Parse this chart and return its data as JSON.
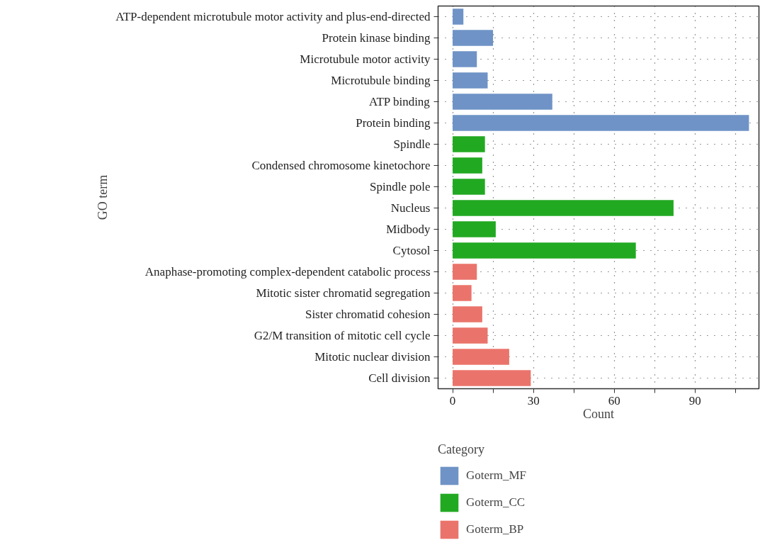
{
  "chart_data": {
    "type": "bar",
    "orientation": "horizontal",
    "xlabel": "Count",
    "ylabel": "GO term",
    "legend_title": "Category",
    "legend": "bottom",
    "grid": true,
    "categories": [
      "ATP-dependent microtubule motor activity and plus-end-directed",
      "Protein kinase binding",
      "Microtubule motor activity",
      "Microtubule binding",
      "ATP binding",
      "Protein binding",
      "Spindle",
      "Condensed chromosome kinetochore",
      "Spindle pole",
      "Nucleus",
      "Midbody",
      "Cytosol",
      "Anaphase-promoting complex-dependent catabolic process",
      "Mitotic sister chromatid segregation",
      "Sister chromatid cohesion",
      "G2/M transition of mitotic cell cycle",
      "Mitotic nuclear division",
      "Cell division"
    ],
    "series": [
      {
        "name": "Goterm_MF",
        "color": "#6f93c6",
        "values": [
          4,
          15,
          9,
          13,
          37,
          110,
          null,
          null,
          null,
          null,
          null,
          null,
          null,
          null,
          null,
          null,
          null,
          null
        ]
      },
      {
        "name": "Goterm_CC",
        "color": "#22a922",
        "values": [
          null,
          null,
          null,
          null,
          null,
          null,
          12,
          11,
          12,
          82,
          16,
          68,
          null,
          null,
          null,
          null,
          null,
          null
        ]
      },
      {
        "name": "Goterm_BP",
        "color": "#ea746b",
        "values": [
          null,
          null,
          null,
          null,
          null,
          null,
          null,
          null,
          null,
          null,
          null,
          null,
          9,
          7,
          11,
          13,
          21,
          29
        ]
      }
    ],
    "xlim": [
      -5.4,
      113.7
    ],
    "xticks": [
      0,
      {
        "value": 15,
        "label": null
      },
      30,
      {
        "value": 45,
        "label": null
      },
      60,
      {
        "value": 75,
        "label": null
      },
      90,
      {
        "value": 105,
        "label": null
      }
    ]
  }
}
